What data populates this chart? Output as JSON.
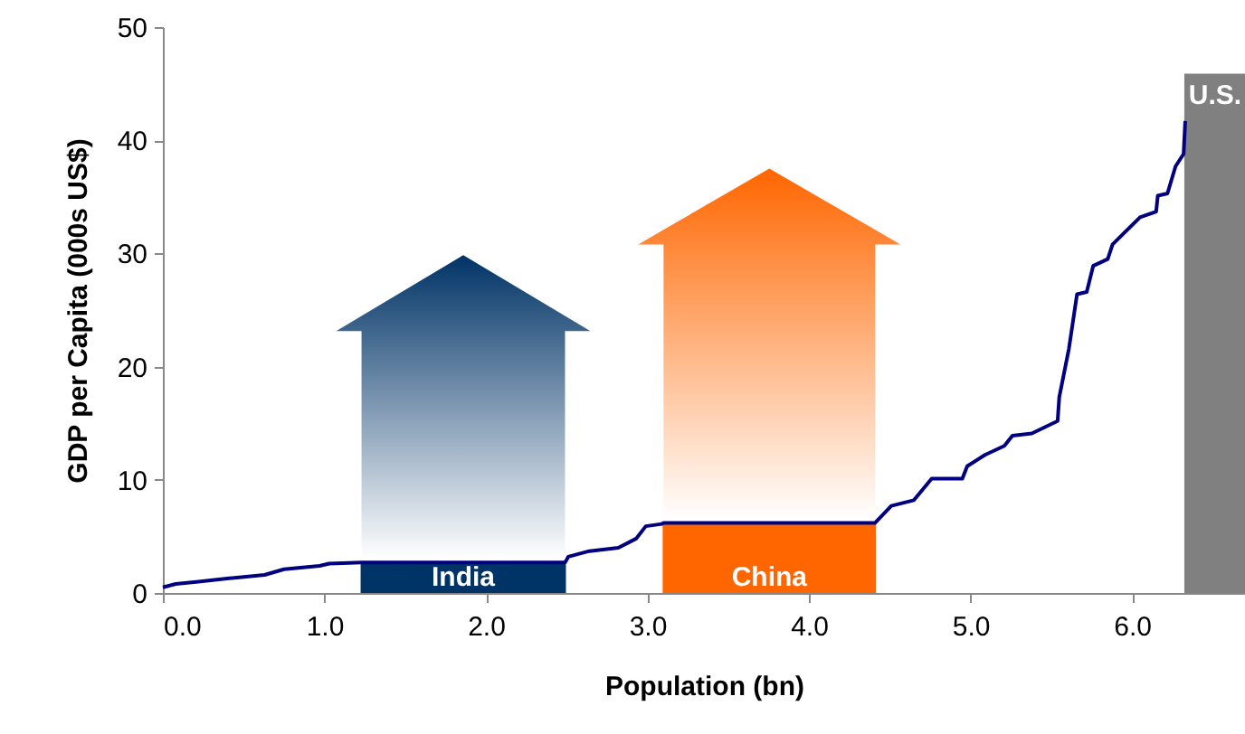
{
  "chart_data": {
    "type": "line",
    "xlabel": "Population (bn)",
    "ylabel": "GDP per Capita (000s US$)",
    "xlim": [
      0,
      6.7
    ],
    "ylim": [
      0,
      50
    ],
    "xticks": [
      {
        "value": 0,
        "label": "0.0"
      },
      {
        "value": 1,
        "label": "1.0"
      },
      {
        "value": 2,
        "label": "2.0"
      },
      {
        "value": 3,
        "label": "3.0"
      },
      {
        "value": 4,
        "label": "4.0"
      },
      {
        "value": 5,
        "label": "5.0"
      },
      {
        "value": 6,
        "label": "6.0"
      }
    ],
    "yticks": [
      0,
      10,
      20,
      30,
      40,
      50
    ],
    "grid": false,
    "series": [
      {
        "color": "#000080",
        "x": [
          0.0,
          0.08,
          0.22,
          0.41,
          0.63,
          0.75,
          0.97,
          1.03,
          1.23,
          2.49,
          2.51,
          2.64,
          2.82,
          2.93,
          2.99,
          3.09,
          3.1,
          4.41,
          4.51,
          4.65,
          4.76,
          4.95,
          4.98,
          5.09,
          5.21,
          5.26,
          5.38,
          5.54,
          5.55,
          5.61,
          5.66,
          5.72,
          5.76,
          5.85,
          5.88,
          6.05,
          6.15,
          6.16,
          6.22,
          6.27,
          6.32,
          6.33
        ],
        "values": [
          0.5,
          0.8,
          1.0,
          1.3,
          1.6,
          2.1,
          2.4,
          2.6,
          2.7,
          2.7,
          3.2,
          3.7,
          4.0,
          4.8,
          5.9,
          6.1,
          6.2,
          6.2,
          7.7,
          8.2,
          10.1,
          10.1,
          11.2,
          12.2,
          13.0,
          13.9,
          14.1,
          15.2,
          17.3,
          21.6,
          26.4,
          26.6,
          28.9,
          29.5,
          30.8,
          33.2,
          33.7,
          35.1,
          35.3,
          37.7,
          38.8,
          41.7
        ]
      },
      {
        "type": "area",
        "name": "India",
        "color": "#003366",
        "x": [
          1.23,
          2.49
        ],
        "values": [
          2.7,
          2.7
        ]
      },
      {
        "type": "area",
        "name": "China",
        "color": "#ff6600",
        "x": [
          3.1,
          4.41
        ],
        "values": [
          6.2,
          6.2
        ]
      },
      {
        "type": "area",
        "name": "U.S.",
        "color": "#808080",
        "x": [
          6.33,
          6.7
        ],
        "values": [
          45.8,
          45.8
        ]
      }
    ]
  }
}
